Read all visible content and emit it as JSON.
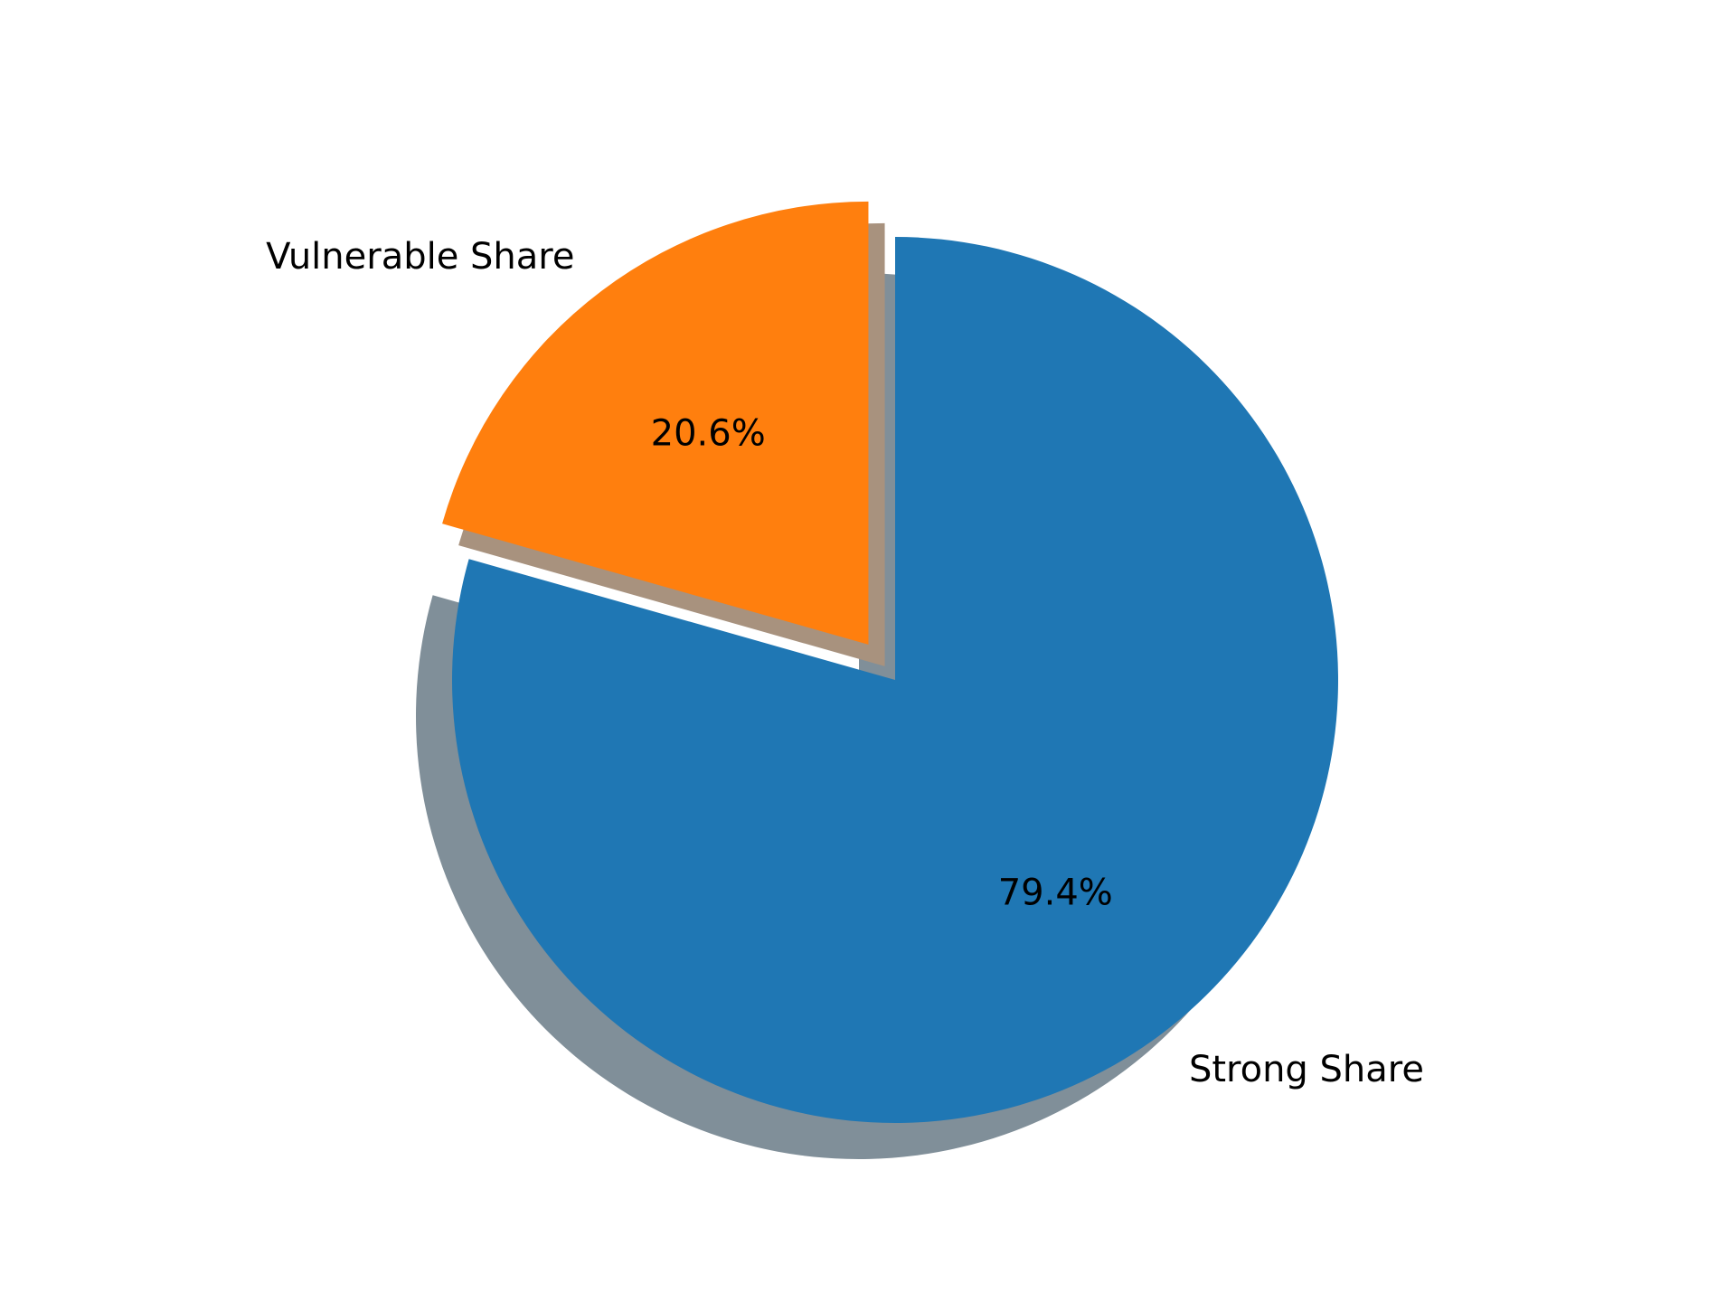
{
  "chart_data": {
    "type": "pie",
    "slices": [
      {
        "label": "Strong Share",
        "value": 79.4,
        "pct_label": "79.4%",
        "color": "#1f77b4",
        "exploded": false
      },
      {
        "label": "Vulnerable Share",
        "value": 20.6,
        "pct_label": "20.6%",
        "color": "#ff7f0e",
        "exploded": true
      }
    ],
    "start_angle_deg": 90,
    "direction": "clockwise",
    "shadow": true,
    "shadow_color": "#808f99",
    "title": "",
    "legend": "none"
  }
}
